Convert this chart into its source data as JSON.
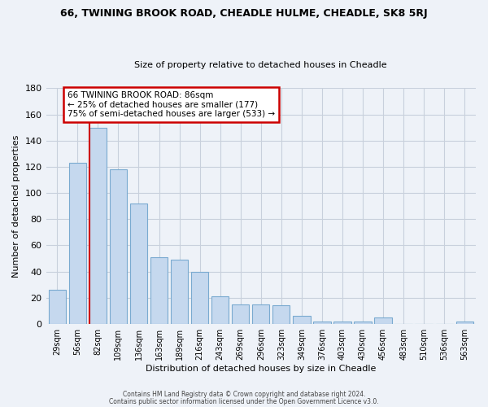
{
  "title1": "66, TWINING BROOK ROAD, CHEADLE HULME, CHEADLE, SK8 5RJ",
  "title2": "Size of property relative to detached houses in Cheadle",
  "xlabel": "Distribution of detached houses by size in Cheadle",
  "ylabel": "Number of detached properties",
  "categories": [
    "29sqm",
    "56sqm",
    "82sqm",
    "109sqm",
    "136sqm",
    "163sqm",
    "189sqm",
    "216sqm",
    "243sqm",
    "269sqm",
    "296sqm",
    "323sqm",
    "349sqm",
    "376sqm",
    "403sqm",
    "430sqm",
    "456sqm",
    "483sqm",
    "510sqm",
    "536sqm",
    "563sqm"
  ],
  "values": [
    26,
    123,
    150,
    118,
    92,
    51,
    49,
    40,
    21,
    15,
    15,
    14,
    6,
    2,
    2,
    2,
    5,
    0,
    0,
    0,
    2
  ],
  "bar_color": "#c5d8ee",
  "bar_edge_color": "#7aaad0",
  "marker_color": "#cc0000",
  "marker_index": 2,
  "annotation_text": "66 TWINING BROOK ROAD: 86sqm\n← 25% of detached houses are smaller (177)\n75% of semi-detached houses are larger (533) →",
  "annotation_box_color": "#ffffff",
  "annotation_box_edge_color": "#cc0000",
  "ylim": [
    0,
    180
  ],
  "yticks": [
    0,
    20,
    40,
    60,
    80,
    100,
    120,
    140,
    160,
    180
  ],
  "grid_color": "#c8d0dc",
  "plot_bg_color": "#eef2f8",
  "fig_bg_color": "#eef2f8",
  "footer1": "Contains HM Land Registry data © Crown copyright and database right 2024.",
  "footer2": "Contains public sector information licensed under the Open Government Licence v3.0."
}
